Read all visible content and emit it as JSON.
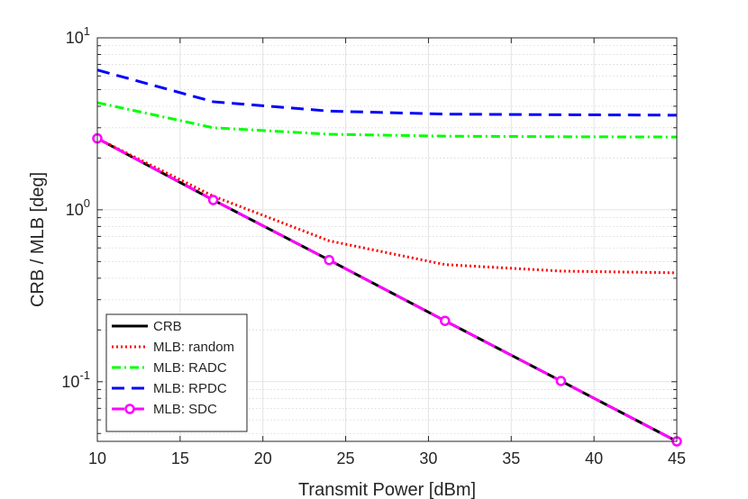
{
  "chart_data": {
    "type": "line",
    "title": "",
    "xlabel": "Transmit Power [dBm]",
    "ylabel": "CRB / MLB [deg]",
    "xlim": [
      10,
      45
    ],
    "ylim": [
      0.045,
      10
    ],
    "yscale": "log",
    "grid": true,
    "minor_grid": true,
    "legend_position": "bottom-left",
    "xticks": [
      10,
      15,
      20,
      25,
      30,
      35,
      40,
      45
    ],
    "xtick_labels": [
      "10",
      "15",
      "20",
      "25",
      "30",
      "35",
      "40",
      "45"
    ],
    "yticks": [
      {
        "value": 0.1,
        "base": "10",
        "exp": "-1"
      },
      {
        "value": 1,
        "base": "10",
        "exp": "0"
      },
      {
        "value": 10,
        "base": "10",
        "exp": "1"
      }
    ],
    "x": [
      10,
      17,
      24,
      31,
      38,
      45
    ],
    "series": [
      {
        "name": "CRB",
        "color": "#000000",
        "style": "solid",
        "marker": "none",
        "values": [
          2.6,
          1.14,
          0.51,
          0.226,
          0.101,
          0.045
        ]
      },
      {
        "name": "MLB: random",
        "color": "#ff0000",
        "style": "dotted",
        "marker": "none",
        "values": [
          2.6,
          1.2,
          0.66,
          0.48,
          0.44,
          0.43
        ]
      },
      {
        "name": "MLB: RADC",
        "color": "#00ff00",
        "style": "dashdot",
        "marker": "none",
        "values": [
          4.2,
          3.0,
          2.75,
          2.68,
          2.66,
          2.65
        ]
      },
      {
        "name": "MLB: RPDC",
        "color": "#0000ff",
        "style": "dashed",
        "marker": "none",
        "values": [
          6.5,
          4.25,
          3.75,
          3.6,
          3.57,
          3.55
        ]
      },
      {
        "name": "MLB: SDC",
        "color": "#ff00ff",
        "style": "dashed",
        "marker": "circle",
        "values": [
          2.6,
          1.14,
          0.51,
          0.226,
          0.101,
          0.045
        ]
      }
    ]
  }
}
